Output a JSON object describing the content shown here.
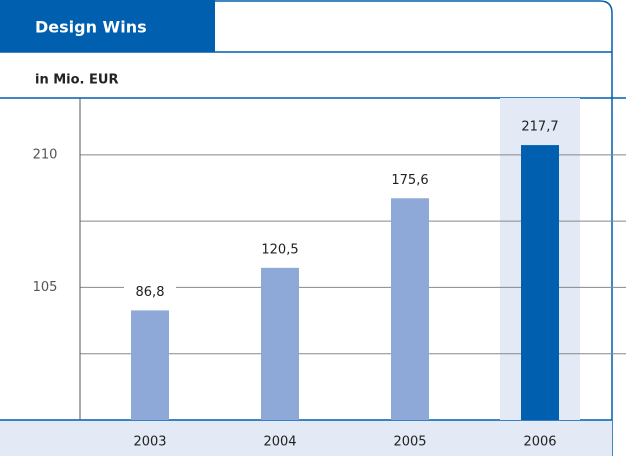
{
  "chart_data": {
    "type": "bar",
    "title": "Design Wins",
    "subtitle": "in Mio. EUR",
    "categories": [
      "2003",
      "2004",
      "2005",
      "2006"
    ],
    "values": [
      86.8,
      120.5,
      175.6,
      217.7
    ],
    "value_labels": [
      "86,8",
      "120,5",
      "175,6",
      "217,7"
    ],
    "colors": [
      "#8ea9d8",
      "#8ea9d8",
      "#8ea9d8",
      "#005fae"
    ],
    "highlight_category": "2006",
    "highlight_background": "#e3e9f5",
    "ylim": [
      0,
      255
    ],
    "yticks": [
      105,
      210
    ],
    "minor_yticks": [
      52.5,
      157.5
    ],
    "grid": true
  }
}
